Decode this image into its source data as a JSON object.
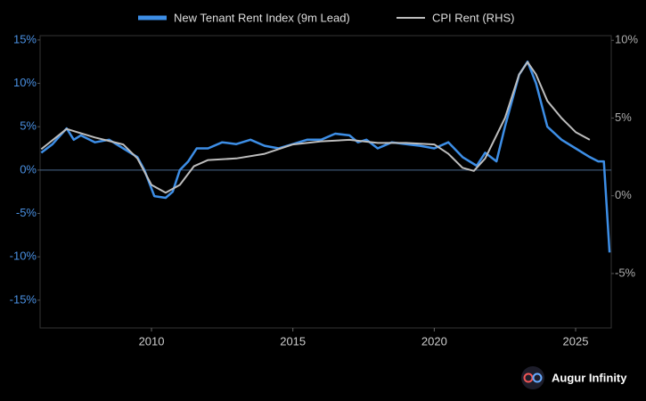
{
  "chart_data": {
    "type": "line",
    "brand": "Augur Infinity",
    "xlim": [
      2006.06,
      2026.26
    ],
    "xticks": [
      2010,
      2015,
      2020,
      2025
    ],
    "ylim": [
      -18.2,
      15.5
    ],
    "yticks": [
      {
        "value": 15,
        "label": "15%"
      },
      {
        "value": 10,
        "label": "10%"
      },
      {
        "value": 5,
        "label": "5%"
      },
      {
        "value": 0,
        "label": "0%"
      },
      {
        "value": -5,
        "label": "-5%"
      },
      {
        "value": -10,
        "label": "-10%"
      },
      {
        "value": -15,
        "label": "-15%"
      }
    ],
    "y2lim": [
      -8.5,
      10.3
    ],
    "y2ticks": [
      {
        "value": 10,
        "label": "10%"
      },
      {
        "value": 5,
        "label": "5%"
      },
      {
        "value": 0,
        "label": "0%"
      },
      {
        "value": -5,
        "label": "-5%"
      }
    ],
    "series": [
      {
        "name": "New Tenant Rent Index (9m Lead)",
        "color": "#3d8ee6",
        "x": [
          2006.1,
          2006.5,
          2007,
          2007.25,
          2007.5,
          2008,
          2008.5,
          2009,
          2009.5,
          2009.75,
          2010.1,
          2010.5,
          2010.75,
          2011,
          2011.3,
          2011.6,
          2012,
          2012.5,
          2013,
          2013.5,
          2014,
          2014.5,
          2015,
          2015.5,
          2016,
          2016.5,
          2017,
          2017.3,
          2017.6,
          2018,
          2018.5,
          2019,
          2019.5,
          2020,
          2020.5,
          2021,
          2021.5,
          2021.8,
          2022.2,
          2022.5,
          2023,
          2023.3,
          2023.6,
          2024,
          2024.5,
          2025,
          2025.5,
          2025.8,
          2026,
          2026.2
        ],
        "values": [
          2,
          3,
          4.8,
          3.5,
          4,
          3.2,
          3.5,
          2.5,
          1.5,
          0,
          -3,
          -3.2,
          -2.5,
          0,
          1,
          2.5,
          2.5,
          3.2,
          3,
          3.5,
          2.8,
          2.5,
          3,
          3.5,
          3.5,
          4.2,
          4,
          3.2,
          3.5,
          2.5,
          3.2,
          3,
          2.8,
          2.5,
          3.2,
          1.5,
          0.5,
          2,
          1,
          5,
          11,
          12.5,
          10,
          5,
          3.5,
          2.5,
          1.5,
          1,
          1,
          -9.5
        ]
      },
      {
        "name": "CPI Rent (RHS)",
        "color": "#bdbdbd",
        "axis": "y2",
        "x": [
          2006.1,
          2007,
          2008,
          2009,
          2009.5,
          2010,
          2010.5,
          2011,
          2011.5,
          2012,
          2013,
          2014,
          2015,
          2016,
          2017,
          2018,
          2019,
          2020,
          2020.5,
          2021,
          2021.4,
          2021.8,
          2022.5,
          2023,
          2023.3,
          2023.6,
          2024,
          2024.5,
          2025,
          2025.5
        ],
        "values": [
          3.0,
          4.3,
          3.75,
          3.3,
          2.4,
          0.7,
          0.2,
          0.7,
          1.9,
          2.3,
          2.4,
          2.7,
          3.3,
          3.5,
          3.6,
          3.4,
          3.4,
          3.3,
          2.7,
          1.8,
          1.6,
          2.4,
          5,
          7.8,
          8.6,
          7.8,
          6.1,
          5,
          4.1,
          3.6
        ]
      }
    ]
  }
}
